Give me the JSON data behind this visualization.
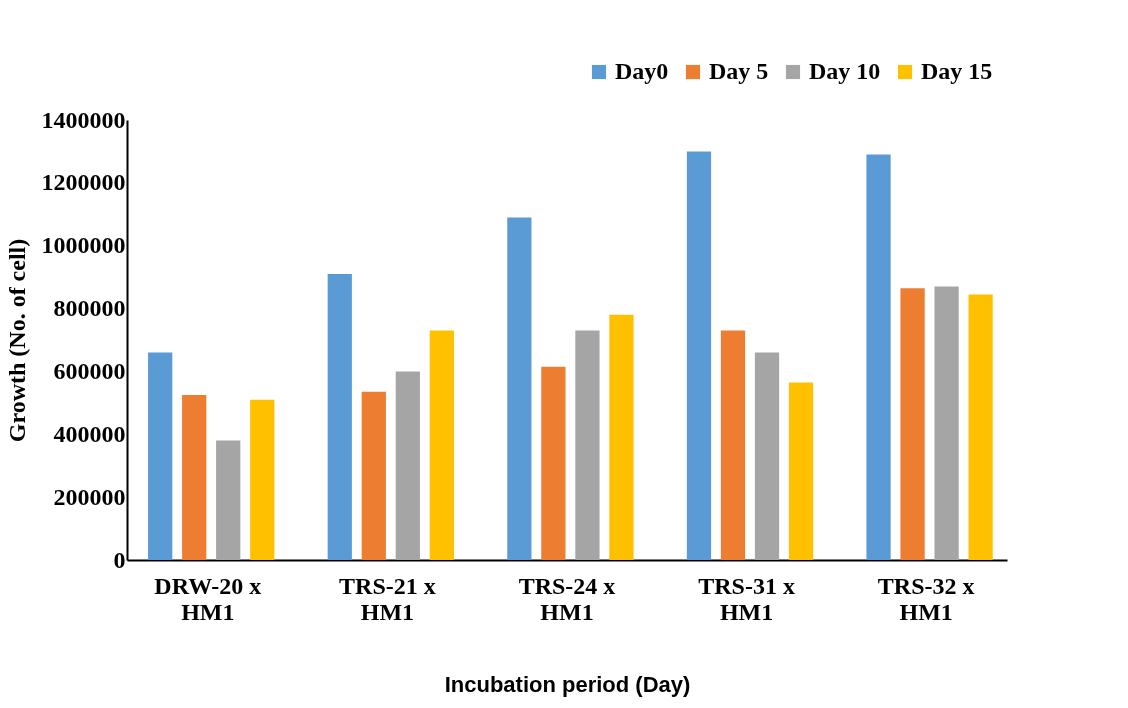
{
  "chart_data": {
    "type": "bar",
    "xlabel": "Incubation period (Day)",
    "ylabel": "Growth (No. of cell)",
    "categories": [
      "DRW-20 x HM1",
      "TRS-21 x HM1",
      "TRS-24 x HM1",
      "TRS-31 x HM1",
      "TRS-32 x HM1"
    ],
    "series": [
      {
        "name": "Day0",
        "color": "#5b9bd5",
        "values": [
          660000,
          910000,
          1090000,
          1300000,
          1290000
        ]
      },
      {
        "name": "Day 5",
        "color": "#ed7d31",
        "values": [
          525000,
          535000,
          615000,
          730000,
          865000
        ]
      },
      {
        "name": "Day 10",
        "color": "#a5a5a5",
        "values": [
          380000,
          600000,
          730000,
          660000,
          870000
        ]
      },
      {
        "name": "Day 15",
        "color": "#ffc000",
        "values": [
          510000,
          730000,
          780000,
          565000,
          845000
        ]
      }
    ],
    "ylim": [
      0,
      1400000
    ],
    "yticks": [
      0,
      200000,
      400000,
      600000,
      800000,
      1000000,
      1200000,
      1400000
    ],
    "grid": false,
    "legend": "top right"
  }
}
